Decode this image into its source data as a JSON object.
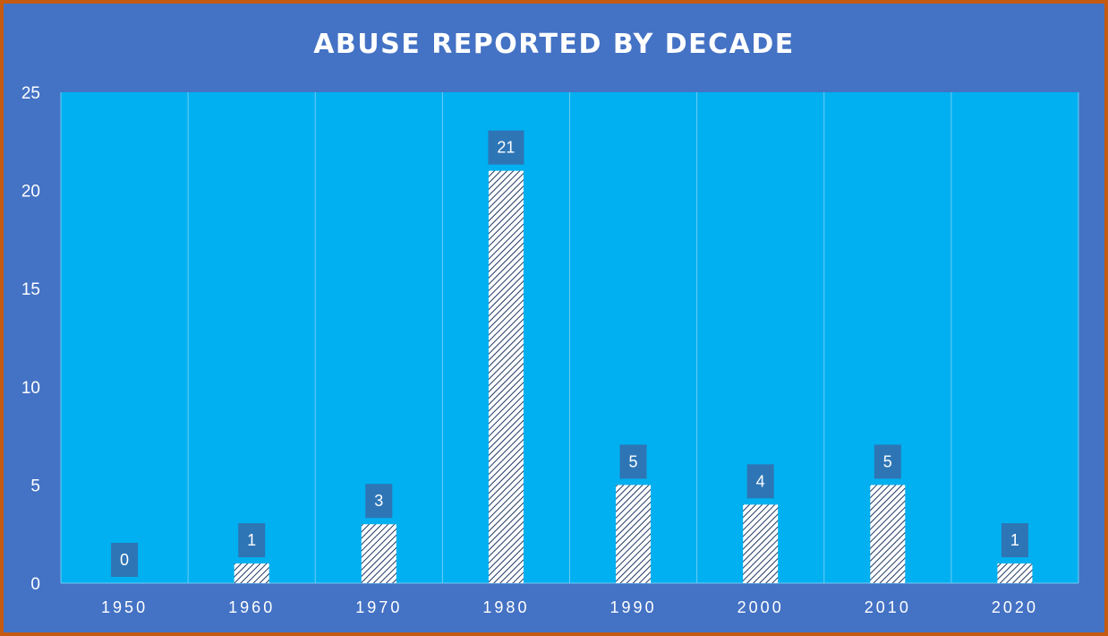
{
  "chart_data": {
    "type": "bar",
    "title": "ABUSE REPORTED BY DECADE",
    "xlabel": "",
    "ylabel": "",
    "categories": [
      "1950",
      "1960",
      "1970",
      "1980",
      "1990",
      "2000",
      "2010",
      "2020"
    ],
    "values": [
      0,
      1,
      3,
      21,
      5,
      4,
      5,
      1
    ],
    "ylim": [
      0,
      25
    ],
    "yticks": [
      0,
      5,
      10,
      15,
      20,
      25
    ],
    "grid": "vertical category separators",
    "legend": "none",
    "data_labels": true,
    "bar_pattern": "white diagonal hatch",
    "colors": {
      "frame_border": "#C55A11",
      "outer_background": "#4472C4",
      "plot_background": "#00B0F0",
      "gridline": "#6FCBF5",
      "data_label_box": "#2E75B6",
      "bar_fill": "#ffffff",
      "bar_hatch": "#1F3864",
      "text": "#ffffff"
    }
  }
}
